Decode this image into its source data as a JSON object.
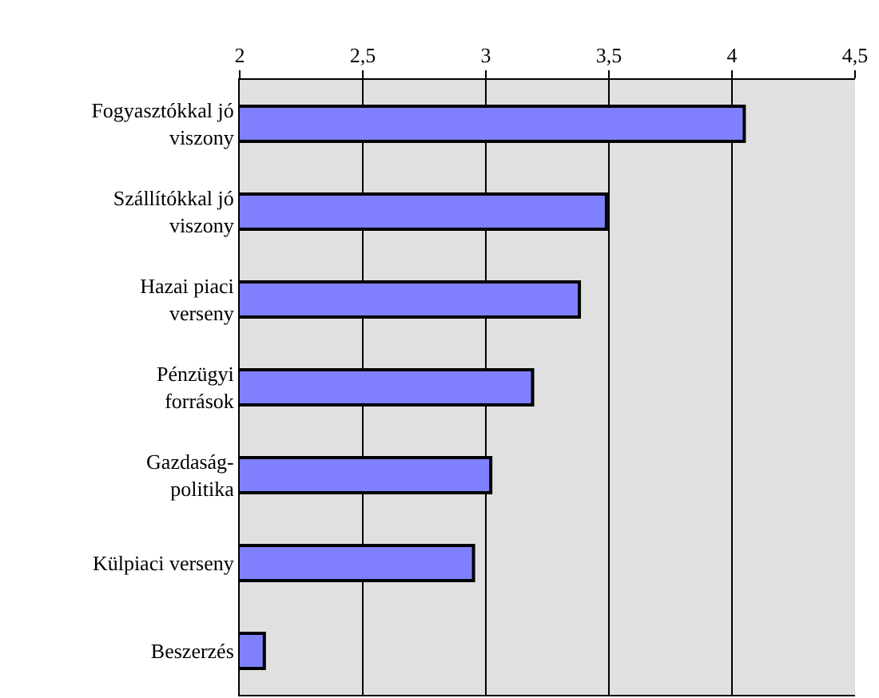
{
  "chart_data": {
    "type": "bar",
    "orientation": "horizontal",
    "categories": [
      "Fogyasztókkal jó viszony",
      "Szállítókkal jó viszony",
      "Hazai piaci verseny",
      "Pénzügyi források",
      "Gazdaság-politika",
      "Külpiaci verseny",
      "Beszerzés"
    ],
    "values": [
      4.05,
      3.49,
      3.38,
      3.19,
      3.02,
      2.95,
      2.1
    ],
    "color": "#8080ff",
    "xlim": [
      2,
      4.5
    ],
    "xticks": [
      {
        "value": 2,
        "label": "2"
      },
      {
        "value": 2.5,
        "label": "2,5"
      },
      {
        "value": 3,
        "label": "3"
      },
      {
        "value": 3.5,
        "label": "3,5"
      },
      {
        "value": 4,
        "label": "4"
      },
      {
        "value": 4.5,
        "label": "4,5"
      }
    ],
    "grid": "x"
  }
}
